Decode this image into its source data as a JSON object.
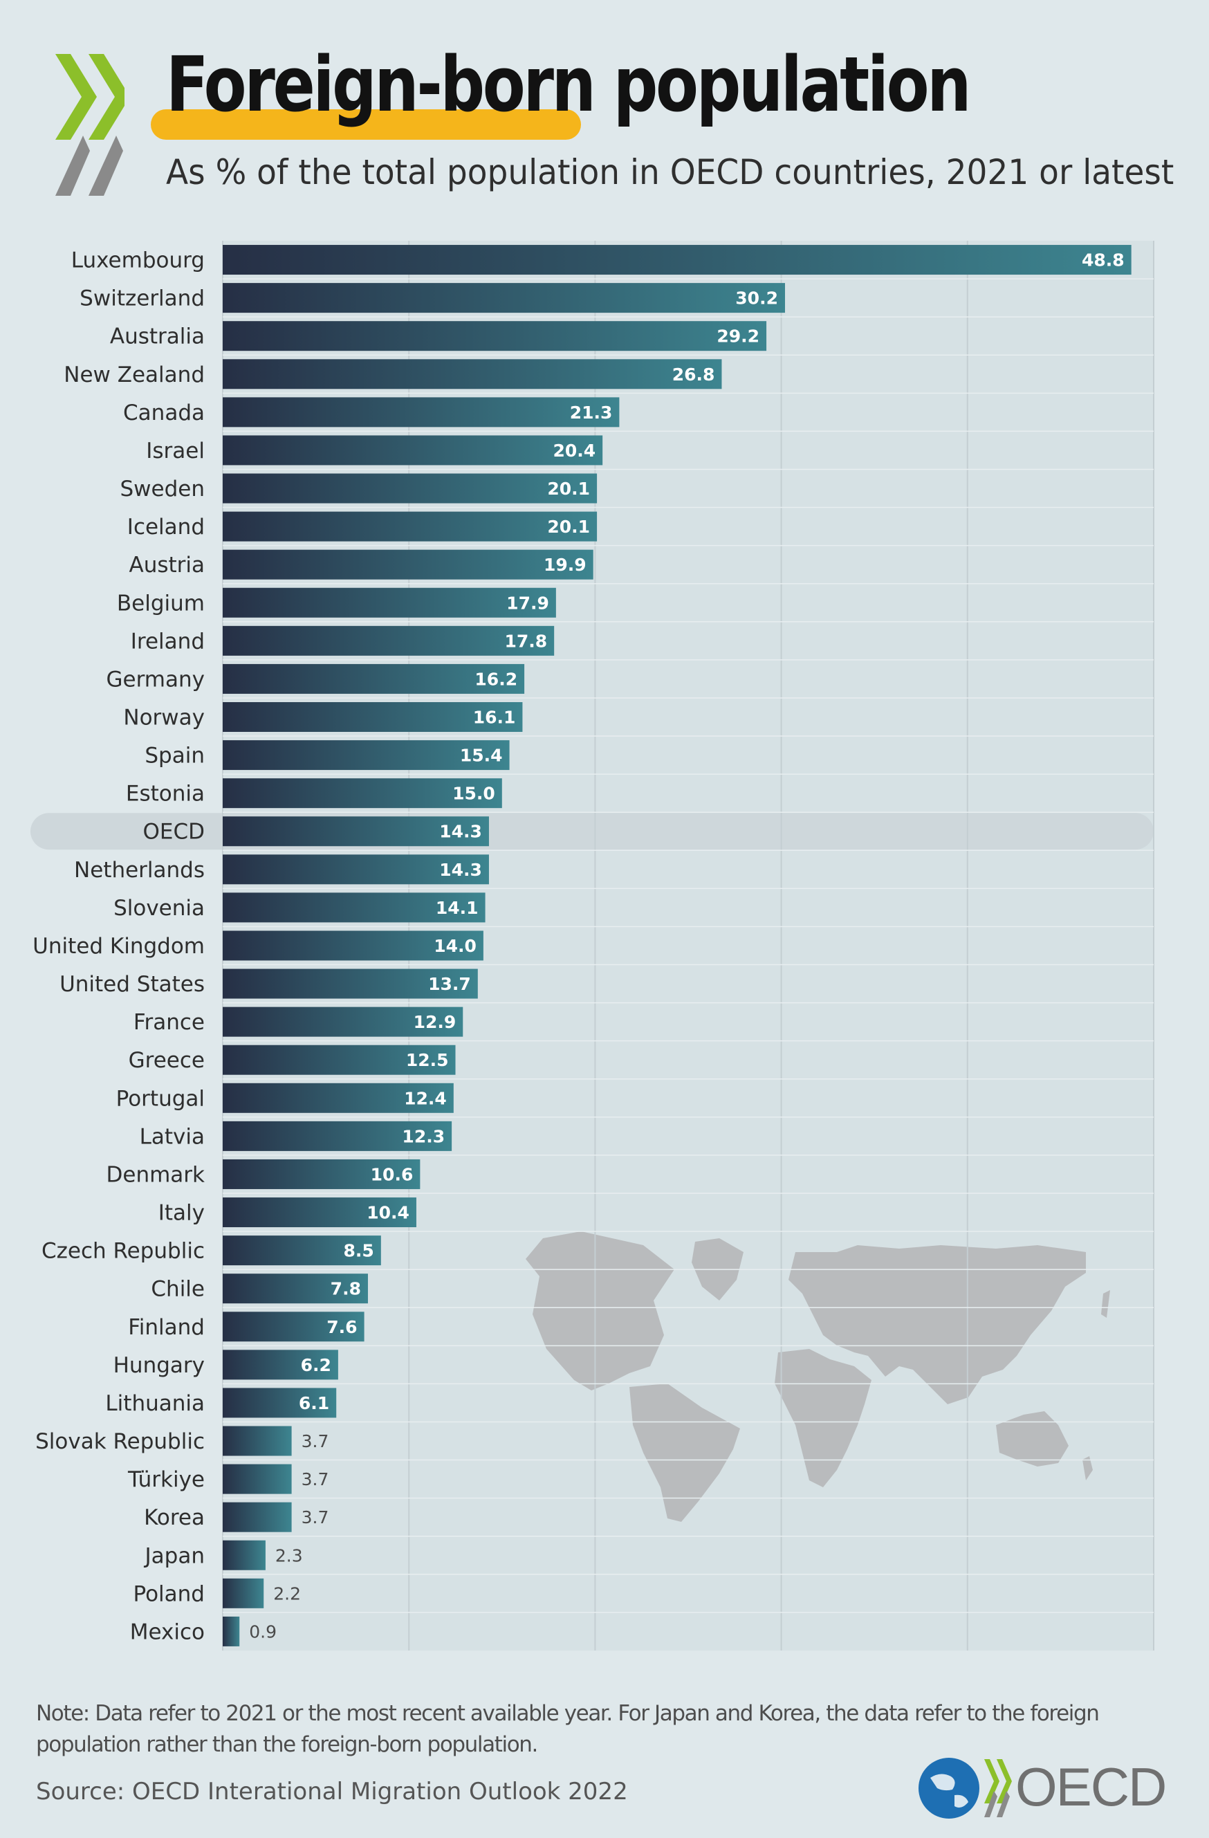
{
  "header": {
    "title": "Foreign-born population",
    "subtitle": "As % of the total population in OECD countries, 2021 or latest"
  },
  "footer": {
    "note": "Note:  Data refer to 2021 or the most recent available year. For Japan and Korea, the data refer to the foreign population rather than the foreign-born population.",
    "source": "Source: OECD Interational Migration Outlook 2022",
    "logo_text": "OECD"
  },
  "colors": {
    "background": "#dfe8eb",
    "bar_dark": "#262f45",
    "bar_light": "#3d8590",
    "highlight": "#f5b51b",
    "chevron_green": "#8cbf2a",
    "chevron_grey": "#8a8a8a",
    "oecd_row": "#ced7db"
  },
  "chart_data": {
    "type": "bar",
    "orientation": "horizontal",
    "title": "Foreign-born population",
    "subtitle": "As % of the total population in OECD countries, 2021 or latest",
    "xlabel": "",
    "ylabel": "",
    "xlim": [
      0,
      50
    ],
    "gridlines": [
      0,
      10,
      20,
      30,
      40,
      50
    ],
    "highlight_category": "OECD",
    "categories": [
      "Luxembourg",
      "Switzerland",
      "Australia",
      "New Zealand",
      "Canada",
      "Israel",
      "Sweden",
      "Iceland",
      "Austria",
      "Belgium",
      "Ireland",
      "Germany",
      "Norway",
      "Spain",
      "Estonia",
      "OECD",
      "Netherlands",
      "Slovenia",
      "United Kingdom",
      "United States",
      "France",
      "Greece",
      "Portugal",
      "Latvia",
      "Denmark",
      "Italy",
      "Czech Republic",
      "Chile",
      "Finland",
      "Hungary",
      "Lithuania",
      "Slovak Republic",
      "Türkiye",
      "Korea",
      "Japan",
      "Poland",
      "Mexico"
    ],
    "values": [
      48.8,
      30.2,
      29.2,
      26.8,
      21.3,
      20.4,
      20.1,
      20.1,
      19.9,
      17.9,
      17.8,
      16.2,
      16.1,
      15.4,
      15.0,
      14.3,
      14.3,
      14.1,
      14.0,
      13.7,
      12.9,
      12.5,
      12.4,
      12.3,
      10.6,
      10.4,
      8.5,
      7.8,
      7.6,
      6.2,
      6.1,
      3.7,
      3.7,
      3.7,
      2.3,
      2.2,
      0.9
    ],
    "value_labels": [
      "48.8",
      "30.2",
      "29.2",
      "26.8",
      "21.3",
      "20.4",
      "20.1",
      "20.1",
      "19.9",
      "17.9",
      "17.8",
      "16.2",
      "16.1",
      "15.4",
      "15.0",
      "14.3",
      "14.3",
      "14.1",
      "14.0",
      "13.7",
      "12.9",
      "12.5",
      "12.4",
      "12.3",
      "10.6",
      "10.4",
      "8.5",
      "7.8",
      "7.6",
      "6.2",
      "6.1",
      "3.7",
      "3.7",
      "3.7",
      "2.3",
      "2.2",
      "0.9"
    ]
  }
}
